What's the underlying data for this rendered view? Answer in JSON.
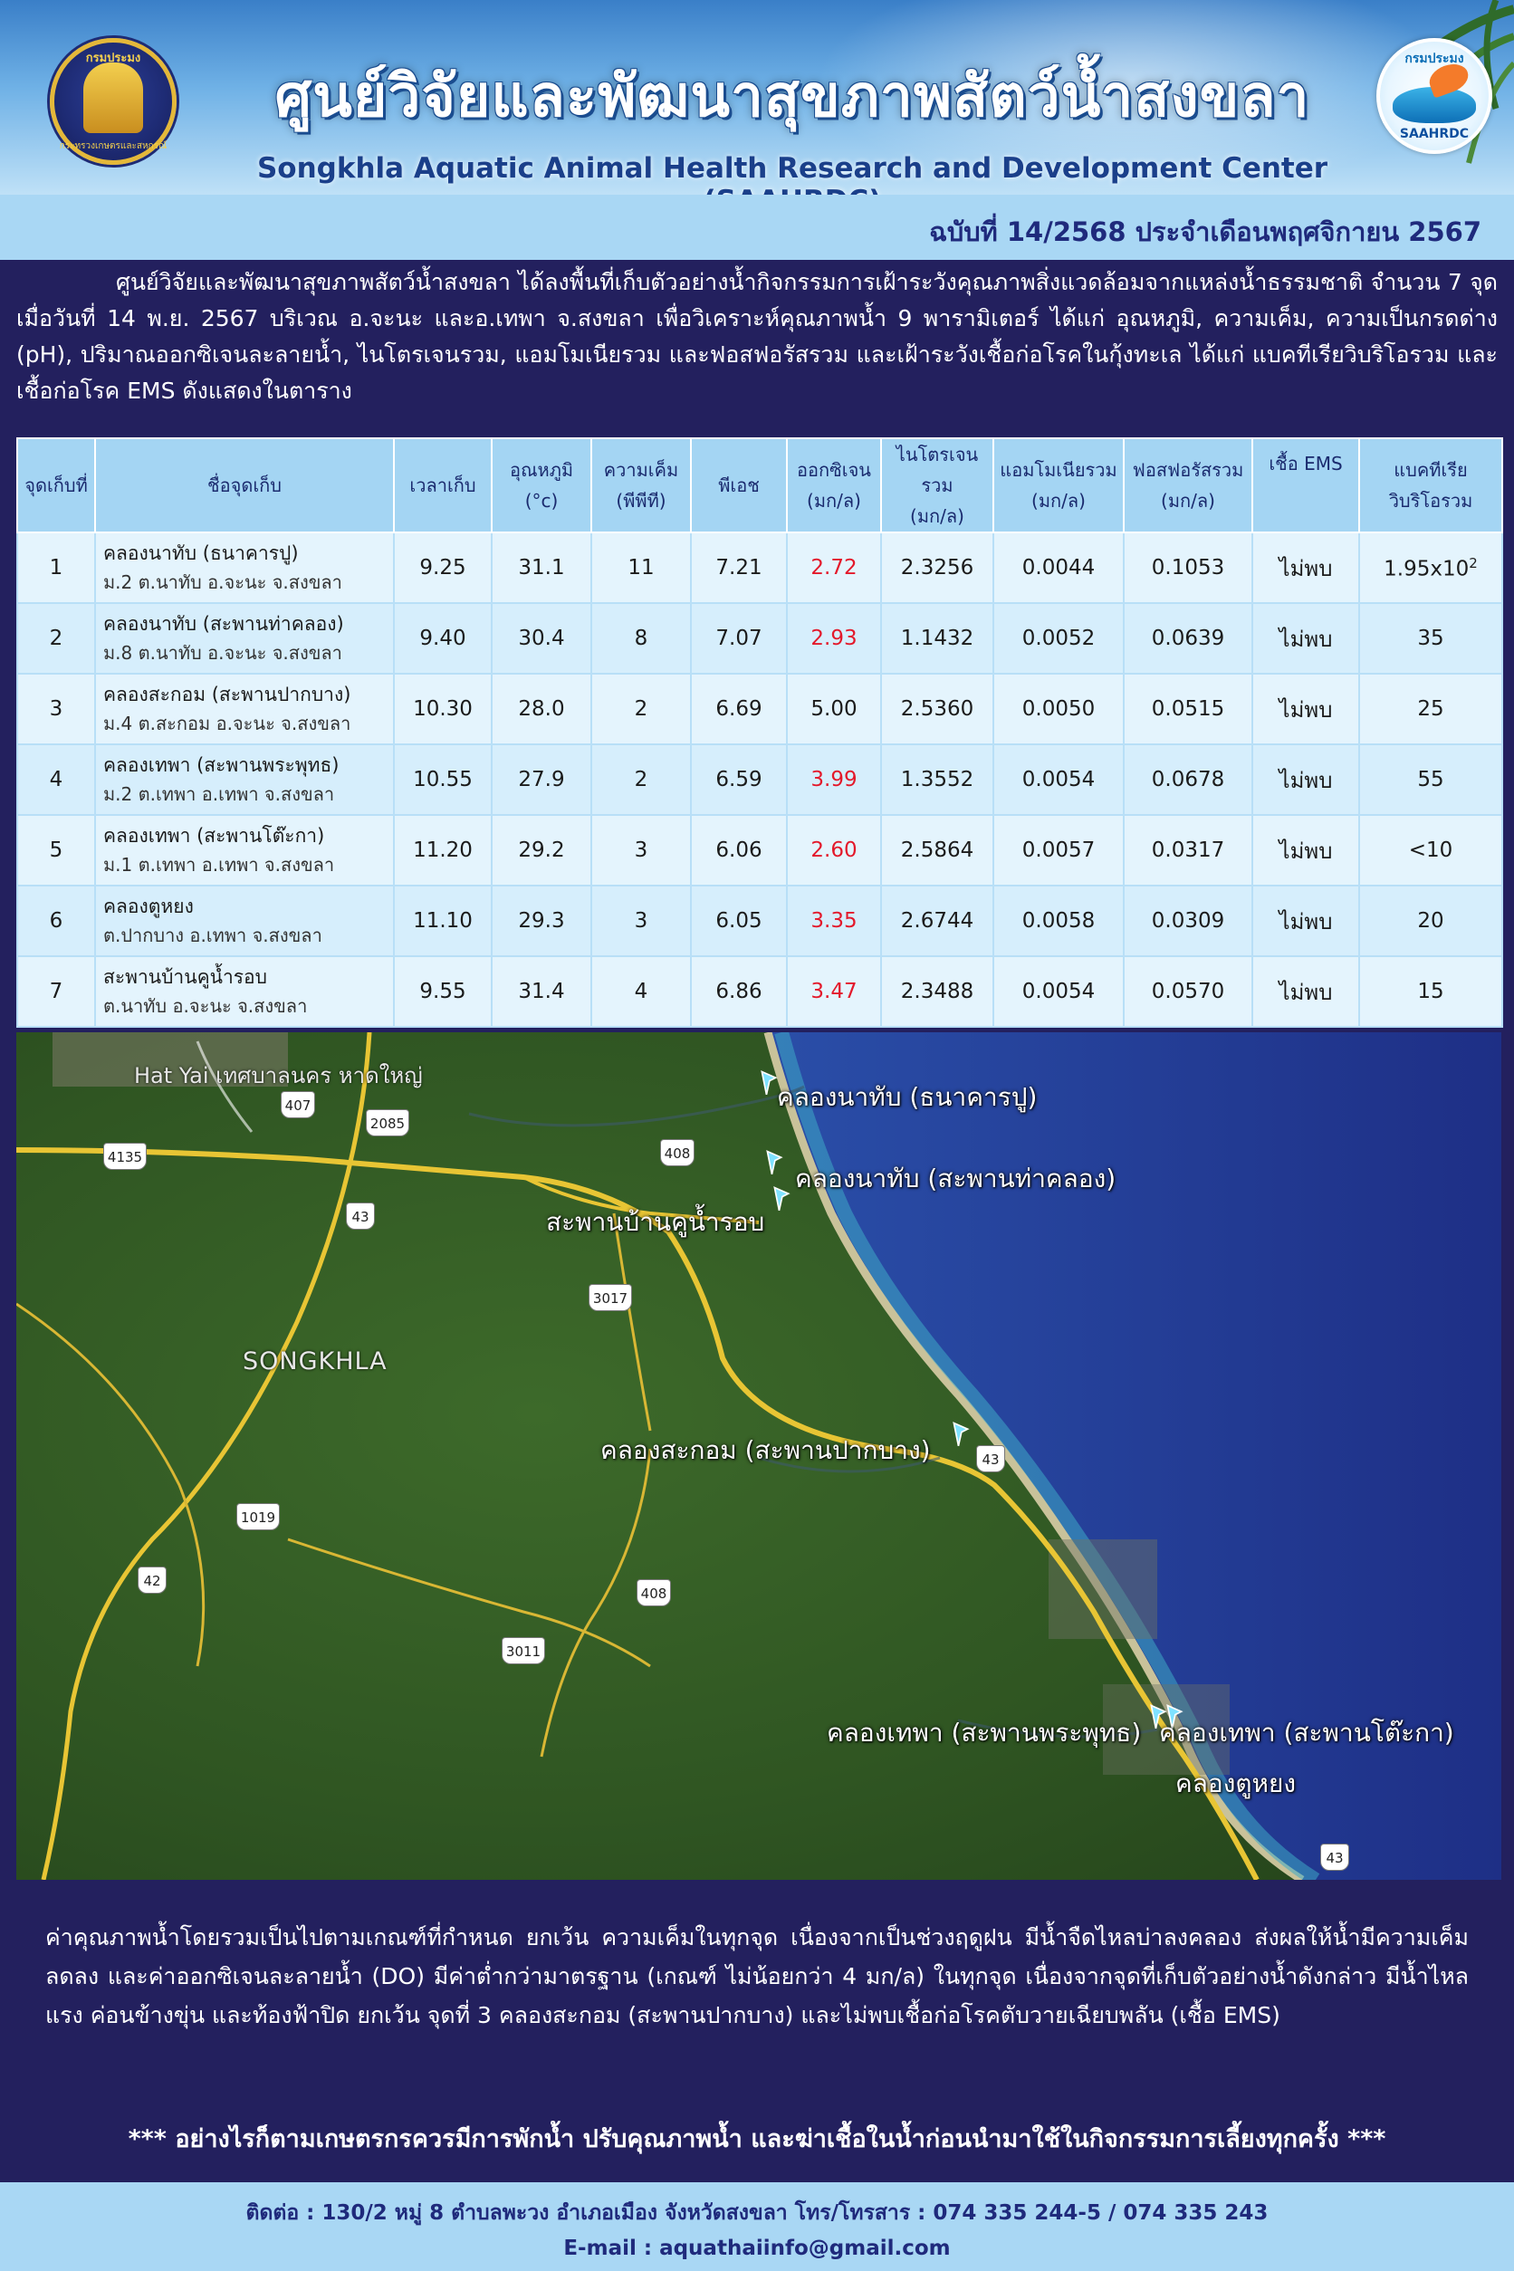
{
  "header": {
    "title_th": "ศูนย์วิจัยและพัฒนาสุขภาพสัตว์น้ำสงขลา",
    "title_en": "Songkhla Aquatic Animal Health Research and Development Center (SAAHRDC)",
    "logo_left_text": "กรมประมง",
    "logo_left_bottom": "กระทรวงเกษตรและสหกรณ์",
    "logo_right_top": "กรมประมง",
    "logo_right_bottom": "SAAHRDC"
  },
  "issue": "ฉบับที่ 14/2568 ประจำเดือนพฤศจิกายน 2567",
  "intro": "ศูนย์วิจัยและพัฒนาสุขภาพสัตว์น้ำสงขลา ได้ลงพื้นที่เก็บตัวอย่างน้ำกิจกรรมการเฝ้าระวังคุณภาพสิ่งแวดล้อมจากแหล่งน้ำธรรมชาติ จำนวน 7 จุด เมื่อวันที่ 14 พ.ย. 2567 บริเวณ อ.จะนะ และอ.เทพา จ.สงขลา เพื่อวิเคราะห์คุณภาพน้ำ 9 พารามิเตอร์ ได้แก่ อุณหภูมิ, ความเค็ม, ความเป็นกรดด่าง (pH), ปริมาณออกซิเจนละลายน้ำ, ไนโตรเจนรวม, แอมโมเนียรวม และฟอสฟอรัสรวม และเฝ้าระวังเชื้อก่อโรคในกุ้งทะเล ได้แก่ แบคทีเรียวิบริโอรวม และเชื้อก่อโรค EMS ดังแสดงในตาราง",
  "table": {
    "headers": {
      "point": "จุดเก็บที่",
      "site": "ชื่อจุดเก็บ",
      "time": "เวลาเก็บ",
      "temp": "อุณหภูมิ",
      "temp_unit": "(°c)",
      "salinity": "ความเค็ม",
      "salinity_unit": "(พีพีที)",
      "ph": "พีเอช",
      "do": "ออกซิเจน",
      "do_unit": "(มก/ล)",
      "tn": "ไนโตรเจนรวม",
      "tn_unit": "(มก/ล)",
      "ta": "แอมโมเนียรวม",
      "ta_unit": "(มก/ล)",
      "tp": "ฟอสฟอรัสรวม",
      "tp_unit": "(มก/ล)",
      "ems": "เชื้อ EMS",
      "vibrio": "แบคทีเรีย",
      "vibrio2": "วิบริโอรวม"
    },
    "rows": [
      {
        "point": "1",
        "name": "คลองนาทับ (ธนาคารปู)",
        "addr": "ม.2 ต.นาทับ อ.จะนะ จ.สงขลา",
        "time": "9.25",
        "temp": "31.1",
        "salinity": "11",
        "ph": "7.21",
        "do": "2.72",
        "tn": "2.3256",
        "ta": "0.0044",
        "tp": "0.1053",
        "ems": "ไม่พบ",
        "vibrio": "1.95x10",
        "vibrio_exp": "2"
      },
      {
        "point": "2",
        "name": "คลองนาทับ (สะพานท่าคลอง)",
        "addr": "ม.8 ต.นาทับ อ.จะนะ จ.สงขลา",
        "time": "9.40",
        "temp": "30.4",
        "salinity": "8",
        "ph": "7.07",
        "do": "2.93",
        "tn": "1.1432",
        "ta": "0.0052",
        "tp": "0.0639",
        "ems": "ไม่พบ",
        "vibrio": "35",
        "vibrio_exp": ""
      },
      {
        "point": "3",
        "name": "คลองสะกอม (สะพานปากบาง)",
        "addr": "ม.4 ต.สะกอม อ.จะนะ จ.สงขลา",
        "time": "10.30",
        "temp": "28.0",
        "salinity": "2",
        "ph": "6.69",
        "do": "5.00",
        "tn": "2.5360",
        "ta": "0.0050",
        "tp": "0.0515",
        "ems": "ไม่พบ",
        "vibrio": "25",
        "vibrio_exp": ""
      },
      {
        "point": "4",
        "name": "คลองเทพา (สะพานพระพุทธ)",
        "addr": "ม.2 ต.เทพา อ.เทพา จ.สงขลา",
        "time": "10.55",
        "temp": "27.9",
        "salinity": "2",
        "ph": "6.59",
        "do": "3.99",
        "tn": "1.3552",
        "ta": "0.0054",
        "tp": "0.0678",
        "ems": "ไม่พบ",
        "vibrio": "55",
        "vibrio_exp": ""
      },
      {
        "point": "5",
        "name": "คลองเทพา (สะพานโต๊ะกา)",
        "addr": "ม.1 ต.เทพา อ.เทพา จ.สงขลา",
        "time": "11.20",
        "temp": "29.2",
        "salinity": "3",
        "ph": "6.06",
        "do": "2.60",
        "tn": "2.5864",
        "ta": "0.0057",
        "tp": "0.0317",
        "ems": "ไม่พบ",
        "vibrio": "<10",
        "vibrio_exp": ""
      },
      {
        "point": "6",
        "name": "คลองตูหยง",
        "addr": "ต.ปากบาง อ.เทพา จ.สงขลา",
        "time": "11.10",
        "temp": "29.3",
        "salinity": "3",
        "ph": "6.05",
        "do": "3.35",
        "tn": "2.6744",
        "ta": "0.0058",
        "tp": "0.0309",
        "ems": "ไม่พบ",
        "vibrio": "20",
        "vibrio_exp": ""
      },
      {
        "point": "7",
        "name": "สะพานบ้านคูน้ำรอบ",
        "addr": "ต.นาทับ อ.จะนะ จ.สงขลา",
        "time": "9.55",
        "temp": "31.4",
        "salinity": "4",
        "ph": "6.86",
        "do": "3.47",
        "tn": "2.3488",
        "ta": "0.0054",
        "tp": "0.0570",
        "ems": "ไม่พบ",
        "vibrio": "15",
        "vibrio_exp": ""
      }
    ]
  },
  "map": {
    "city_label": "Hat Yai เทศบาลนคร หาดใหญ่",
    "province_label": "SONGKHLA",
    "site_labels": [
      "คลองนาทับ (ธนาคารปู)",
      "คลองนาทับ (สะพานท่าคลอง)",
      "สะพานบ้านคูน้ำรอบ",
      "คลองสะกอม (สะพานปากบาง)",
      "คลองเทพา (สะพานพระพุทธ)",
      "คลองเทพา (สะพานโต๊ะกา)",
      "คลองตูหยง"
    ],
    "roads": [
      "407",
      "2085",
      "4135",
      "408",
      "43",
      "3017",
      "43",
      "1019",
      "42",
      "408",
      "3011",
      "43"
    ]
  },
  "summary": "ค่าคุณภาพน้ำโดยรวมเป็นไปตามเกณฑ์ที่กำหนด ยกเว้น ความเค็มในทุกจุด เนื่องจากเป็นช่วงฤดูฝน มีน้ำจืดไหลบ่าลงคลอง ส่งผลให้น้ำมีความเค็มลดลง และค่าออกซิเจนละลายน้ำ (DO) มีค่าต่ำกว่ามาตรฐาน (เกณฑ์ ไม่น้อยกว่า 4 มก/ล) ในทุกจุด เนื่องจากจุดที่เก็บตัวอย่างน้ำดังกล่าว มีน้ำไหลแรง ค่อนข้างขุ่น และท้องฟ้าปิด ยกเว้น จุดที่ 3 คลองสะกอม (สะพานปากบาง) และไม่พบเชื้อก่อโรคตับวายเฉียบพลัน (เชื้อ EMS)",
  "warning": "*** อย่างไรก็ตามเกษตรกรควรมีการพักน้ำ ปรับคุณภาพน้ำ และฆ่าเชื้อในน้ำก่อนนำมาใช้ในกิจกรรมการเลี้ยงทุกครั้ง ***",
  "footer": {
    "contact": "ติดต่อ : 130/2 หมู่ 8 ตำบลพะวง อำเภอเมือง จังหวัดสงขลา โทร/โทรสาร : 074 335 244-5 / 074 335 243",
    "email": "E-mail : aquathaiinfo@gmail.com"
  },
  "colors": {
    "background": "#23205e",
    "header_light": "#a9d7f4",
    "table_header": "#a4d5f3",
    "low_do": "#e3192b",
    "text_navy": "#1f2a7c"
  }
}
